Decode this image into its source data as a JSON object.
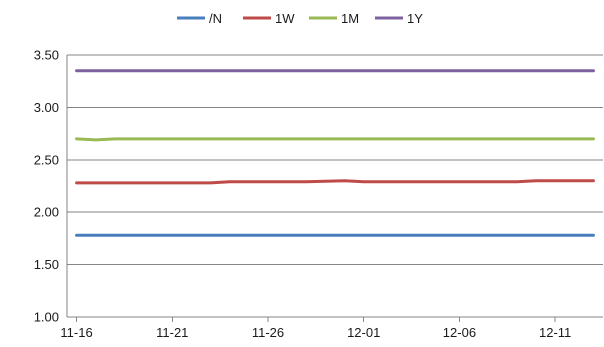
{
  "chart_data": {
    "type": "line",
    "title": "",
    "xlabel": "",
    "ylabel": "",
    "ylim": [
      1.0,
      3.5
    ],
    "yticks": [
      "1.00",
      "1.50",
      "2.00",
      "2.50",
      "3.00",
      "3.50"
    ],
    "x": [
      "11-16",
      "11-17",
      "11-18",
      "11-19",
      "11-20",
      "11-21",
      "11-22",
      "11-23",
      "11-24",
      "11-25",
      "11-26",
      "11-27",
      "11-28",
      "11-29",
      "11-30",
      "12-01",
      "12-02",
      "12-03",
      "12-04",
      "12-05",
      "12-06",
      "12-07",
      "12-08",
      "12-09",
      "12-10",
      "12-11",
      "12-12",
      "12-13"
    ],
    "xticks": [
      "11-16",
      "11-21",
      "11-26",
      "12-01",
      "12-06",
      "12-11"
    ],
    "grid": "horizontal",
    "legend_position": "top",
    "series": [
      {
        "name": "/N",
        "color": "#4a7ebb",
        "values": [
          1.78,
          1.78,
          1.78,
          1.78,
          1.78,
          1.78,
          1.78,
          1.78,
          1.78,
          1.78,
          1.78,
          1.78,
          1.78,
          1.78,
          1.78,
          1.78,
          1.78,
          1.78,
          1.78,
          1.78,
          1.78,
          1.78,
          1.78,
          1.78,
          1.78,
          1.78,
          1.78,
          1.78
        ]
      },
      {
        "name": "1W",
        "color": "#be4b48",
        "values": [
          2.28,
          2.28,
          2.28,
          2.28,
          2.28,
          2.28,
          2.28,
          2.28,
          2.29,
          2.29,
          2.29,
          2.29,
          2.29,
          2.295,
          2.3,
          2.29,
          2.29,
          2.29,
          2.29,
          2.29,
          2.29,
          2.29,
          2.29,
          2.29,
          2.3,
          2.3,
          2.3,
          2.3
        ]
      },
      {
        "name": "1M",
        "color": "#98b954",
        "values": [
          2.7,
          2.69,
          2.7,
          2.7,
          2.7,
          2.7,
          2.7,
          2.7,
          2.7,
          2.7,
          2.7,
          2.7,
          2.7,
          2.7,
          2.7,
          2.7,
          2.7,
          2.7,
          2.7,
          2.7,
          2.7,
          2.7,
          2.7,
          2.7,
          2.7,
          2.7,
          2.7,
          2.7
        ]
      },
      {
        "name": "1Y",
        "color": "#7d60a0",
        "values": [
          3.35,
          3.35,
          3.35,
          3.35,
          3.35,
          3.35,
          3.35,
          3.35,
          3.35,
          3.35,
          3.35,
          3.35,
          3.35,
          3.35,
          3.35,
          3.35,
          3.35,
          3.35,
          3.35,
          3.35,
          3.35,
          3.35,
          3.35,
          3.35,
          3.35,
          3.35,
          3.35,
          3.35
        ]
      }
    ]
  }
}
